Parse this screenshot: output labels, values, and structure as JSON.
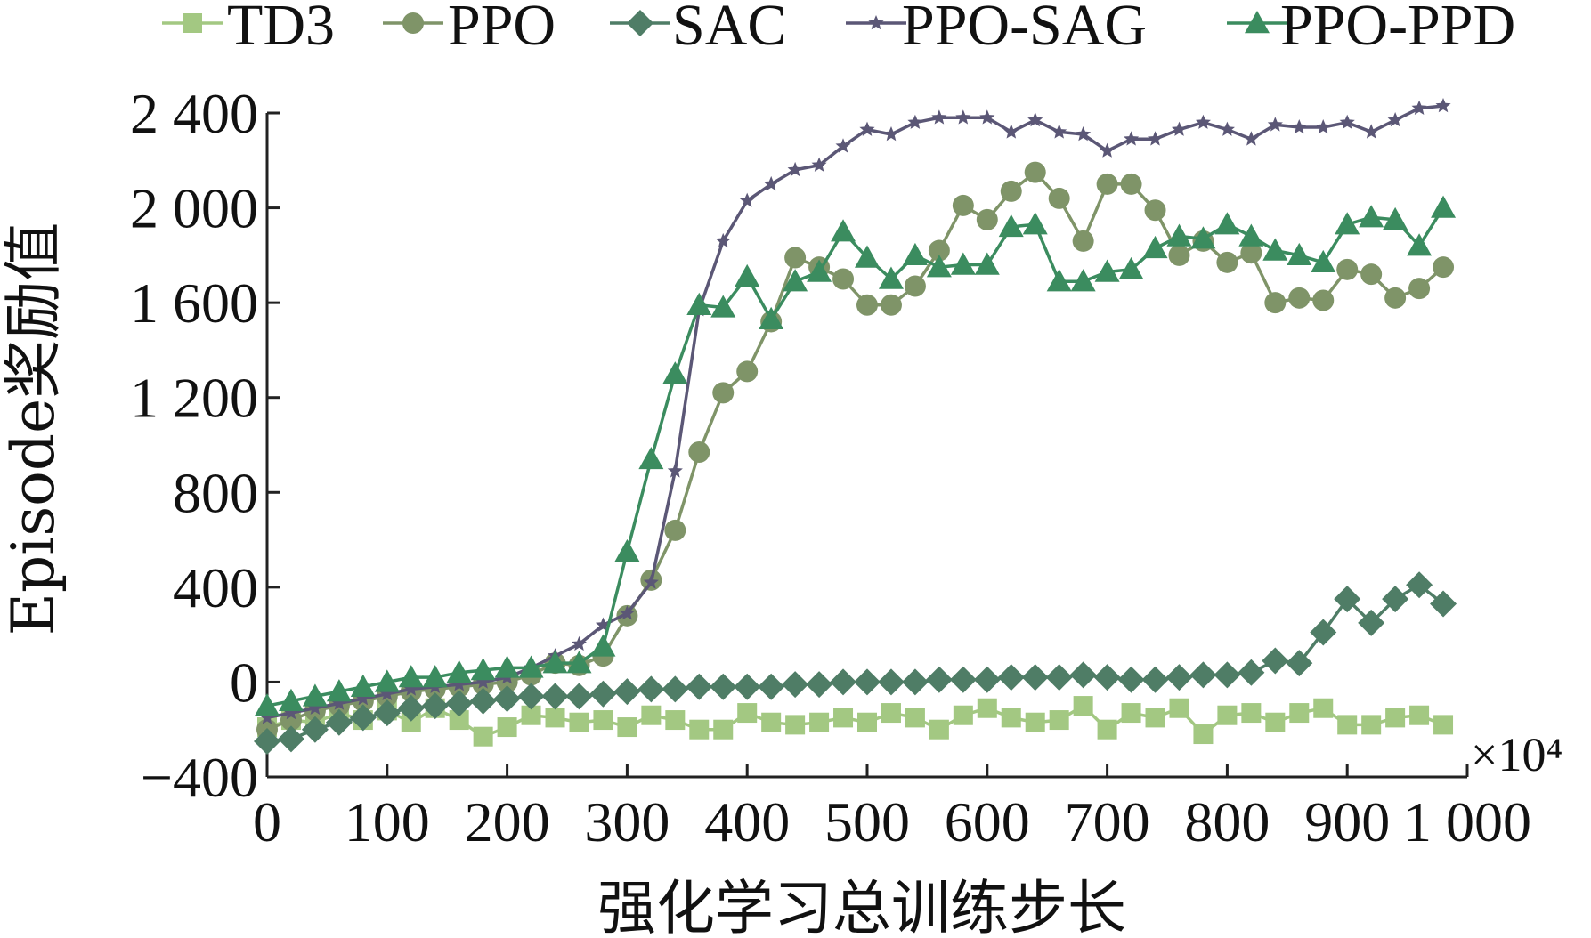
{
  "chart_data": {
    "type": "line",
    "title": "",
    "xlabel": "强化学习总训练步长",
    "ylabel": "Episode奖励值",
    "x_unit": "×10⁴",
    "xlim": [
      0,
      1000
    ],
    "ylim": [
      -400,
      2400
    ],
    "x_ticks": [
      0,
      100,
      200,
      300,
      400,
      500,
      600,
      700,
      800,
      900,
      1000
    ],
    "x_tick_labels": [
      "0",
      "100",
      "200",
      "300",
      "400",
      "500",
      "600",
      "700",
      "800",
      "900",
      "1 000"
    ],
    "y_ticks": [
      -400,
      0,
      400,
      800,
      1200,
      1600,
      2000,
      2400
    ],
    "y_tick_labels": [
      "−400",
      "0",
      "400",
      "800",
      "1 200",
      "1 600",
      "2 000",
      "2 400"
    ],
    "legend_position": "top",
    "grid": false,
    "x": [
      0,
      20,
      40,
      60,
      80,
      100,
      120,
      140,
      160,
      180,
      200,
      220,
      240,
      260,
      280,
      300,
      320,
      340,
      360,
      380,
      400,
      420,
      440,
      460,
      480,
      500,
      520,
      540,
      560,
      580,
      600,
      620,
      640,
      660,
      680,
      700,
      720,
      740,
      760,
      780,
      800,
      820,
      840,
      860,
      880,
      900,
      920,
      940,
      960,
      980
    ],
    "series": [
      {
        "name": "TD3",
        "marker": "square",
        "color": "#a3c882",
        "values": [
          -190,
          -160,
          -170,
          -130,
          -160,
          -120,
          -170,
          -110,
          -160,
          -230,
          -190,
          -140,
          -150,
          -170,
          -160,
          -190,
          -140,
          -160,
          -200,
          -200,
          -130,
          -170,
          -180,
          -170,
          -150,
          -170,
          -130,
          -150,
          -200,
          -140,
          -110,
          -150,
          -170,
          -160,
          -100,
          -200,
          -130,
          -150,
          -110,
          -220,
          -140,
          -130,
          -170,
          -130,
          -110,
          -180,
          -180,
          -150,
          -140,
          -180
        ]
      },
      {
        "name": "PPO",
        "marker": "circle",
        "color": "#7f9468",
        "values": [
          -200,
          -160,
          -120,
          -100,
          -80,
          -60,
          -40,
          -30,
          -20,
          -10,
          0,
          30,
          80,
          70,
          110,
          280,
          430,
          640,
          970,
          1220,
          1310,
          1520,
          1790,
          1750,
          1700,
          1590,
          1590,
          1670,
          1820,
          2010,
          1950,
          2070,
          2150,
          2040,
          1860,
          2100,
          2100,
          1990,
          1800,
          1860,
          1770,
          1810,
          1600,
          1620,
          1610,
          1740,
          1720,
          1620,
          1660,
          1750
        ]
      },
      {
        "name": "SAC",
        "marker": "diamond",
        "color": "#4f7d66",
        "values": [
          -250,
          -240,
          -200,
          -170,
          -150,
          -130,
          -110,
          -100,
          -90,
          -80,
          -70,
          -60,
          -60,
          -60,
          -50,
          -40,
          -30,
          -30,
          -20,
          -20,
          -20,
          -20,
          -10,
          -10,
          0,
          0,
          0,
          0,
          10,
          10,
          10,
          20,
          20,
          20,
          30,
          20,
          10,
          10,
          20,
          30,
          30,
          40,
          90,
          80,
          210,
          350,
          250,
          350,
          410,
          330
        ]
      },
      {
        "name": "PPO-SAG",
        "marker": "star",
        "color": "#5b5776",
        "values": [
          -150,
          -130,
          -110,
          -90,
          -70,
          -50,
          -30,
          -20,
          -10,
          0,
          20,
          60,
          110,
          160,
          240,
          290,
          420,
          890,
          1570,
          1860,
          2030,
          2100,
          2160,
          2180,
          2260,
          2330,
          2310,
          2360,
          2380,
          2380,
          2380,
          2320,
          2370,
          2320,
          2310,
          2240,
          2290,
          2290,
          2330,
          2360,
          2330,
          2290,
          2350,
          2340,
          2340,
          2360,
          2320,
          2370,
          2420,
          2430
        ]
      },
      {
        "name": "PPO-PPD",
        "marker": "triangle",
        "color": "#3b8c5f",
        "values": [
          -100,
          -80,
          -60,
          -40,
          -20,
          0,
          20,
          20,
          40,
          50,
          60,
          60,
          80,
          80,
          150,
          550,
          940,
          1300,
          1590,
          1580,
          1710,
          1530,
          1690,
          1730,
          1900,
          1790,
          1700,
          1800,
          1750,
          1760,
          1760,
          1920,
          1930,
          1690,
          1690,
          1730,
          1740,
          1830,
          1880,
          1870,
          1930,
          1880,
          1820,
          1800,
          1770,
          1930,
          1960,
          1950,
          1840,
          2000
        ]
      }
    ]
  }
}
